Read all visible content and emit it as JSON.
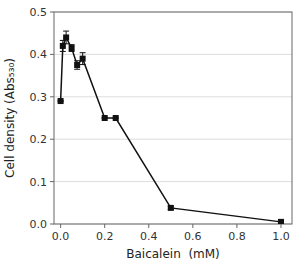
{
  "chart_data": {
    "type": "line",
    "x": [
      0,
      0.01,
      0.025,
      0.05,
      0.075,
      0.1,
      0.2,
      0.25,
      0.5,
      1.0
    ],
    "values": [
      0.29,
      0.42,
      0.44,
      0.415,
      0.375,
      0.39,
      0.25,
      0.25,
      0.038,
      0.005
    ],
    "yerr": [
      0.0,
      0.013,
      0.015,
      0.008,
      0.01,
      0.014,
      0.0,
      0.0,
      0.004,
      0.001
    ],
    "xlabel": "Baicalein  (mM)",
    "ylabel": "Cell density (Abs₅₃₀)",
    "xlim": [
      -0.03,
      1.05
    ],
    "ylim": [
      0,
      0.5
    ],
    "xticks": [
      {
        "value": 0,
        "label": "0.0"
      },
      0.2,
      0.4,
      0.6,
      0.8,
      {
        "value": 1.0,
        "label": "1.0"
      }
    ],
    "yticks": [
      {
        "value": 0,
        "label": "0.0"
      },
      0.1,
      0.2,
      0.3,
      0.4,
      0.5
    ],
    "marker": "square",
    "line_style": "solid",
    "color": "#111111",
    "grid": true
  }
}
